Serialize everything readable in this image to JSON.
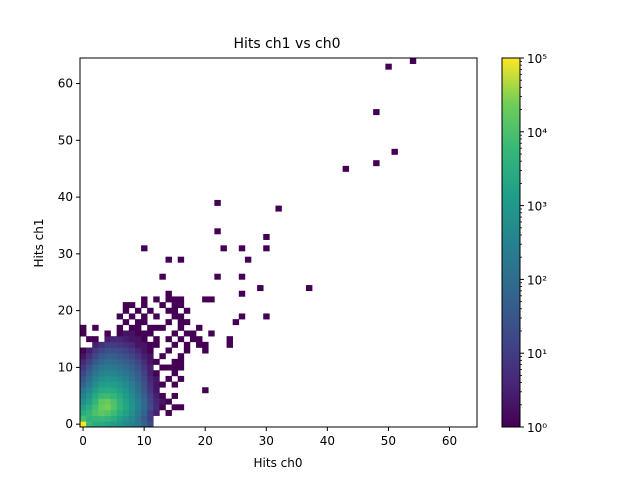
{
  "chart_data": {
    "type": "heatmap",
    "title": "Hits ch1 vs ch0",
    "xlabel": "Hits ch0",
    "ylabel": "Hits ch1",
    "xlim": [
      0,
      64
    ],
    "ylim": [
      0,
      64
    ],
    "x_ticks": [
      0,
      10,
      20,
      30,
      40,
      50,
      60
    ],
    "y_ticks": [
      0,
      10,
      20,
      30,
      40,
      50,
      60
    ],
    "bin_width": 1,
    "colormap": "viridis",
    "colorbar": {
      "scale": "log",
      "range": [
        1,
        100000
      ],
      "ticks": [
        {
          "value": 1,
          "label": "10⁰"
        },
        {
          "value": 10,
          "label": "10¹"
        },
        {
          "value": 100,
          "label": "10²"
        },
        {
          "value": 1000,
          "label": "10³"
        },
        {
          "value": 10000,
          "label": "10⁴"
        },
        {
          "value": 100000,
          "label": "10⁵"
        }
      ]
    },
    "cells": [
      [
        0,
        0,
        100000
      ],
      [
        1,
        0,
        6000
      ],
      [
        2,
        0,
        3000
      ],
      [
        3,
        0,
        2500
      ],
      [
        4,
        0,
        1800
      ],
      [
        5,
        0,
        1200
      ],
      [
        6,
        0,
        800
      ],
      [
        7,
        0,
        500
      ],
      [
        8,
        0,
        300
      ],
      [
        9,
        0,
        150
      ],
      [
        10,
        0,
        60
      ],
      [
        11,
        0,
        20
      ],
      [
        0,
        1,
        8000
      ],
      [
        1,
        1,
        4000
      ],
      [
        2,
        1,
        5000
      ],
      [
        3,
        1,
        6000
      ],
      [
        4,
        1,
        5000
      ],
      [
        5,
        1,
        3000
      ],
      [
        6,
        1,
        1500
      ],
      [
        7,
        1,
        800
      ],
      [
        8,
        1,
        400
      ],
      [
        9,
        1,
        150
      ],
      [
        10,
        1,
        40
      ],
      [
        11,
        1,
        10
      ],
      [
        0,
        2,
        3000
      ],
      [
        1,
        2,
        5000
      ],
      [
        2,
        2,
        10000
      ],
      [
        3,
        2,
        15000
      ],
      [
        4,
        2,
        12000
      ],
      [
        5,
        2,
        7000
      ],
      [
        6,
        2,
        3000
      ],
      [
        7,
        2,
        1500
      ],
      [
        8,
        2,
        600
      ],
      [
        9,
        2,
        200
      ],
      [
        10,
        2,
        60
      ],
      [
        11,
        2,
        10
      ],
      [
        12,
        2,
        3
      ],
      [
        14,
        2,
        1
      ],
      [
        0,
        3,
        1500
      ],
      [
        1,
        3,
        3000
      ],
      [
        2,
        3,
        8000
      ],
      [
        3,
        3,
        20000
      ],
      [
        4,
        3,
        25000
      ],
      [
        5,
        3,
        12000
      ],
      [
        6,
        3,
        5000
      ],
      [
        7,
        3,
        2000
      ],
      [
        8,
        3,
        800
      ],
      [
        9,
        3,
        300
      ],
      [
        10,
        3,
        80
      ],
      [
        11,
        3,
        20
      ],
      [
        12,
        3,
        5
      ],
      [
        13,
        3,
        1
      ],
      [
        15,
        3,
        1
      ],
      [
        16,
        3,
        1
      ],
      [
        0,
        4,
        600
      ],
      [
        1,
        4,
        1500
      ],
      [
        2,
        4,
        5000
      ],
      [
        3,
        4,
        15000
      ],
      [
        4,
        4,
        20000
      ],
      [
        5,
        4,
        10000
      ],
      [
        6,
        4,
        4000
      ],
      [
        7,
        4,
        1800
      ],
      [
        8,
        4,
        700
      ],
      [
        9,
        4,
        250
      ],
      [
        10,
        4,
        70
      ],
      [
        11,
        4,
        15
      ],
      [
        12,
        4,
        4
      ],
      [
        13,
        4,
        2
      ],
      [
        14,
        4,
        1
      ],
      [
        0,
        5,
        300
      ],
      [
        1,
        5,
        800
      ],
      [
        2,
        5,
        2500
      ],
      [
        3,
        5,
        6000
      ],
      [
        4,
        5,
        7000
      ],
      [
        5,
        5,
        5000
      ],
      [
        6,
        5,
        2500
      ],
      [
        7,
        5,
        1200
      ],
      [
        8,
        5,
        500
      ],
      [
        9,
        5,
        180
      ],
      [
        10,
        5,
        50
      ],
      [
        11,
        5,
        12
      ],
      [
        12,
        5,
        3
      ],
      [
        13,
        5,
        1
      ],
      [
        15,
        5,
        1
      ],
      [
        0,
        6,
        150
      ],
      [
        1,
        6,
        400
      ],
      [
        2,
        6,
        1200
      ],
      [
        3,
        6,
        2500
      ],
      [
        4,
        6,
        3000
      ],
      [
        5,
        6,
        2500
      ],
      [
        6,
        6,
        1500
      ],
      [
        7,
        6,
        800
      ],
      [
        8,
        6,
        350
      ],
      [
        9,
        6,
        120
      ],
      [
        10,
        6,
        35
      ],
      [
        11,
        6,
        8
      ],
      [
        12,
        6,
        2
      ],
      [
        20,
        6,
        1
      ],
      [
        0,
        7,
        60
      ],
      [
        1,
        7,
        200
      ],
      [
        2,
        7,
        600
      ],
      [
        3,
        7,
        1200
      ],
      [
        4,
        7,
        1500
      ],
      [
        5,
        7,
        1300
      ],
      [
        6,
        7,
        900
      ],
      [
        7,
        7,
        500
      ],
      [
        8,
        7,
        250
      ],
      [
        9,
        7,
        90
      ],
      [
        10,
        7,
        25
      ],
      [
        11,
        7,
        6
      ],
      [
        12,
        7,
        2
      ],
      [
        13,
        7,
        1
      ],
      [
        15,
        7,
        1
      ],
      [
        0,
        8,
        30
      ],
      [
        1,
        8,
        100
      ],
      [
        2,
        8,
        300
      ],
      [
        3,
        8,
        600
      ],
      [
        4,
        8,
        800
      ],
      [
        5,
        8,
        700
      ],
      [
        6,
        8,
        500
      ],
      [
        7,
        8,
        300
      ],
      [
        8,
        8,
        150
      ],
      [
        9,
        8,
        60
      ],
      [
        10,
        8,
        18
      ],
      [
        11,
        8,
        4
      ],
      [
        12,
        8,
        2
      ],
      [
        14,
        8,
        1
      ],
      [
        16,
        8,
        1
      ],
      [
        0,
        9,
        15
      ],
      [
        1,
        9,
        50
      ],
      [
        2,
        9,
        150
      ],
      [
        3,
        9,
        300
      ],
      [
        4,
        9,
        400
      ],
      [
        5,
        9,
        350
      ],
      [
        6,
        9,
        250
      ],
      [
        7,
        9,
        160
      ],
      [
        8,
        9,
        90
      ],
      [
        9,
        9,
        40
      ],
      [
        10,
        9,
        12
      ],
      [
        11,
        9,
        3
      ],
      [
        12,
        9,
        1
      ],
      [
        15,
        9,
        1
      ],
      [
        0,
        10,
        8
      ],
      [
        1,
        10,
        25
      ],
      [
        2,
        10,
        70
      ],
      [
        3,
        10,
        150
      ],
      [
        4,
        10,
        200
      ],
      [
        5,
        10,
        180
      ],
      [
        6,
        10,
        130
      ],
      [
        7,
        10,
        90
      ],
      [
        8,
        10,
        50
      ],
      [
        9,
        10,
        25
      ],
      [
        10,
        10,
        8
      ],
      [
        11,
        10,
        3
      ],
      [
        13,
        10,
        1
      ],
      [
        14,
        10,
        1
      ],
      [
        15,
        10,
        1
      ],
      [
        16,
        10,
        1
      ],
      [
        0,
        11,
        4
      ],
      [
        1,
        11,
        12
      ],
      [
        2,
        11,
        35
      ],
      [
        3,
        11,
        70
      ],
      [
        4,
        11,
        100
      ],
      [
        5,
        11,
        90
      ],
      [
        6,
        11,
        70
      ],
      [
        7,
        11,
        50
      ],
      [
        8,
        11,
        30
      ],
      [
        9,
        11,
        15
      ],
      [
        10,
        11,
        5
      ],
      [
        11,
        11,
        2
      ],
      [
        12,
        11,
        1
      ],
      [
        15,
        11,
        1
      ],
      [
        16,
        11,
        1
      ],
      [
        0,
        12,
        2
      ],
      [
        1,
        12,
        6
      ],
      [
        2,
        12,
        15
      ],
      [
        3,
        12,
        35
      ],
      [
        4,
        12,
        50
      ],
      [
        5,
        12,
        45
      ],
      [
        6,
        12,
        35
      ],
      [
        7,
        12,
        25
      ],
      [
        8,
        12,
        15
      ],
      [
        9,
        12,
        8
      ],
      [
        10,
        12,
        3
      ],
      [
        11,
        12,
        2
      ],
      [
        13,
        12,
        1
      ],
      [
        16,
        12,
        1
      ],
      [
        0,
        13,
        1
      ],
      [
        1,
        13,
        3
      ],
      [
        2,
        13,
        8
      ],
      [
        3,
        13,
        15
      ],
      [
        4,
        13,
        25
      ],
      [
        5,
        13,
        22
      ],
      [
        6,
        13,
        18
      ],
      [
        7,
        13,
        12
      ],
      [
        8,
        13,
        8
      ],
      [
        9,
        13,
        4
      ],
      [
        10,
        13,
        2
      ],
      [
        11,
        13,
        1
      ],
      [
        14,
        13,
        1
      ],
      [
        17,
        13,
        1
      ],
      [
        20,
        13,
        1
      ],
      [
        2,
        14,
        3
      ],
      [
        3,
        14,
        6
      ],
      [
        4,
        14,
        10
      ],
      [
        5,
        14,
        10
      ],
      [
        6,
        14,
        8
      ],
      [
        7,
        14,
        6
      ],
      [
        8,
        14,
        4
      ],
      [
        9,
        14,
        2
      ],
      [
        10,
        14,
        2
      ],
      [
        11,
        14,
        1
      ],
      [
        12,
        14,
        1
      ],
      [
        15,
        14,
        1
      ],
      [
        17,
        14,
        1
      ],
      [
        19,
        14,
        1
      ],
      [
        20,
        14,
        1
      ],
      [
        24,
        14,
        1
      ],
      [
        1,
        15,
        1
      ],
      [
        2,
        15,
        1
      ],
      [
        4,
        15,
        3
      ],
      [
        5,
        15,
        4
      ],
      [
        6,
        15,
        4
      ],
      [
        7,
        15,
        3
      ],
      [
        8,
        15,
        2
      ],
      [
        9,
        15,
        2
      ],
      [
        10,
        15,
        1
      ],
      [
        12,
        15,
        1
      ],
      [
        14,
        15,
        1
      ],
      [
        16,
        15,
        1
      ],
      [
        18,
        15,
        1
      ],
      [
        19,
        15,
        1
      ],
      [
        24,
        15,
        1
      ],
      [
        0,
        16,
        1
      ],
      [
        4,
        16,
        1
      ],
      [
        6,
        16,
        1
      ],
      [
        7,
        16,
        2
      ],
      [
        8,
        16,
        2
      ],
      [
        9,
        16,
        1
      ],
      [
        10,
        16,
        1
      ],
      [
        11,
        16,
        1
      ],
      [
        15,
        16,
        1
      ],
      [
        17,
        16,
        1
      ],
      [
        18,
        16,
        1
      ],
      [
        21,
        16,
        1
      ],
      [
        0,
        17,
        1
      ],
      [
        2,
        17,
        1
      ],
      [
        6,
        17,
        1
      ],
      [
        8,
        17,
        1
      ],
      [
        9,
        17,
        1
      ],
      [
        11,
        17,
        1
      ],
      [
        12,
        17,
        1
      ],
      [
        13,
        17,
        1
      ],
      [
        16,
        17,
        1
      ],
      [
        19,
        17,
        1
      ],
      [
        7,
        18,
        1
      ],
      [
        9,
        18,
        1
      ],
      [
        10,
        18,
        1
      ],
      [
        14,
        18,
        1
      ],
      [
        16,
        18,
        1
      ],
      [
        17,
        18,
        1
      ],
      [
        25,
        18,
        1
      ],
      [
        6,
        19,
        1
      ],
      [
        8,
        19,
        1
      ],
      [
        10,
        19,
        1
      ],
      [
        12,
        19,
        1
      ],
      [
        15,
        19,
        1
      ],
      [
        16,
        19,
        1
      ],
      [
        26,
        19,
        1
      ],
      [
        30,
        19,
        1
      ],
      [
        7,
        20,
        1
      ],
      [
        9,
        20,
        1
      ],
      [
        11,
        20,
        1
      ],
      [
        14,
        20,
        1
      ],
      [
        15,
        20,
        1
      ],
      [
        17,
        20,
        1
      ],
      [
        7,
        21,
        1
      ],
      [
        8,
        21,
        1
      ],
      [
        10,
        21,
        1
      ],
      [
        13,
        21,
        1
      ],
      [
        15,
        21,
        1
      ],
      [
        16,
        21,
        1
      ],
      [
        10,
        22,
        1
      ],
      [
        12,
        22,
        1
      ],
      [
        14,
        22,
        1
      ],
      [
        15,
        22,
        1
      ],
      [
        16,
        22,
        1
      ],
      [
        20,
        22,
        1
      ],
      [
        21,
        22,
        1
      ],
      [
        14,
        23,
        1
      ],
      [
        26,
        23,
        1
      ],
      [
        29,
        24,
        1
      ],
      [
        37,
        24,
        1
      ],
      [
        13,
        26,
        1
      ],
      [
        22,
        26,
        1
      ],
      [
        26,
        26,
        1
      ],
      [
        14,
        29,
        1
      ],
      [
        16,
        29,
        1
      ],
      [
        27,
        29,
        1
      ],
      [
        10,
        31,
        1
      ],
      [
        23,
        31,
        1
      ],
      [
        26,
        31,
        1
      ],
      [
        30,
        31,
        1
      ],
      [
        30,
        33,
        1
      ],
      [
        22,
        34,
        1
      ],
      [
        32,
        38,
        1
      ],
      [
        22,
        39,
        1
      ],
      [
        43,
        45,
        1
      ],
      [
        48,
        46,
        1
      ],
      [
        51,
        48,
        1
      ],
      [
        48,
        55,
        1
      ],
      [
        50,
        63,
        1
      ],
      [
        54,
        64,
        1
      ]
    ]
  }
}
